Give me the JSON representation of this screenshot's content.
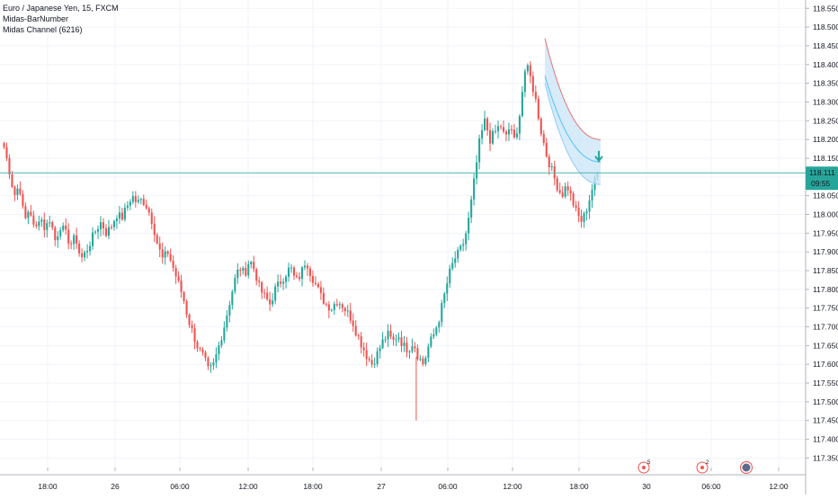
{
  "legend": {
    "symbol": "Euro / Japanese Yen, 15, FXCM",
    "indicator1": "Midas-BarNumber",
    "indicator2": "Midas Channel (6216)"
  },
  "price_label": {
    "value": "118.111",
    "countdown": "09:55",
    "color": "#26a69a"
  },
  "colors": {
    "up": "#26a69a",
    "down": "#ef5350",
    "channel_fill": "#c9e4f7",
    "channel_upper": "#e57373",
    "channel_mid": "#4fc3f7",
    "arrow": "#26a69a",
    "last_line": "#4db6ac"
  },
  "event_markers": [
    {
      "icon": "target-icon",
      "count": "5",
      "color": "#ef5350"
    },
    {
      "icon": "target-icon",
      "count": "2",
      "color": "#ef5350"
    },
    {
      "icon": "avatar-icon",
      "count": "",
      "color": "#5b6b8c"
    }
  ],
  "chart_data": {
    "type": "candlestick",
    "title": "Euro / Japanese Yen, 15, FXCM",
    "ylim": [
      117.35,
      118.6
    ],
    "y_ticks": [
      "118.550",
      "118.500",
      "118.450",
      "118.400",
      "118.350",
      "118.300",
      "118.250",
      "118.200",
      "118.150",
      "118.100",
      "118.050",
      "118.000",
      "117.950",
      "117.900",
      "117.850",
      "117.800",
      "117.750",
      "117.700",
      "117.650",
      "117.600",
      "117.550",
      "117.500",
      "117.450",
      "117.400",
      "117.350"
    ],
    "x_ticks": [
      "18:00",
      "26",
      "06:00",
      "12:00",
      "18:00",
      "27",
      "06:00",
      "12:00",
      "18:00",
      "30",
      "06:00",
      "12:00"
    ],
    "last_price": 118.111,
    "path": [
      118.18,
      118.12,
      118.05,
      118.08,
      117.98,
      118.02,
      117.95,
      118.0,
      117.96,
      117.99,
      117.93,
      117.97,
      117.95,
      117.92,
      117.94,
      117.88,
      117.9,
      117.93,
      117.96,
      117.98,
      117.95,
      117.97,
      118.0,
      117.99,
      118.02,
      118.05,
      118.03,
      118.04,
      118.02,
      117.98,
      117.92,
      117.88,
      117.9,
      117.86,
      117.82,
      117.78,
      117.72,
      117.68,
      117.64,
      117.62,
      117.58,
      117.6,
      117.65,
      117.7,
      117.76,
      117.82,
      117.86,
      117.84,
      117.88,
      117.85,
      117.8,
      117.78,
      117.76,
      117.8,
      117.82,
      117.84,
      117.86,
      117.82,
      117.84,
      117.88,
      117.84,
      117.81,
      117.78,
      117.76,
      117.75,
      117.77,
      117.76,
      117.74,
      117.72,
      117.68,
      117.65,
      117.62,
      117.6,
      117.63,
      117.66,
      117.68,
      117.66,
      117.68,
      117.65,
      117.64,
      117.66,
      117.62,
      117.6,
      117.65,
      117.68,
      117.72,
      117.78,
      117.84,
      117.88,
      117.9,
      117.93,
      118.0,
      118.1,
      118.2,
      118.25,
      118.2,
      118.22,
      118.24,
      118.2,
      118.24,
      118.18,
      118.3,
      118.4,
      118.36,
      118.3,
      118.22,
      118.16,
      118.12,
      118.08,
      118.05,
      118.08,
      118.04,
      118.0,
      117.98,
      118.02,
      118.07,
      118.11
    ],
    "channel": {
      "upper_start": 118.47,
      "upper_end": 118.2,
      "mid_start": 118.37,
      "mid_end": 118.14,
      "lower_start": 118.35,
      "lower_end": 118.08
    },
    "grid": true,
    "legend_position": "top-left"
  }
}
